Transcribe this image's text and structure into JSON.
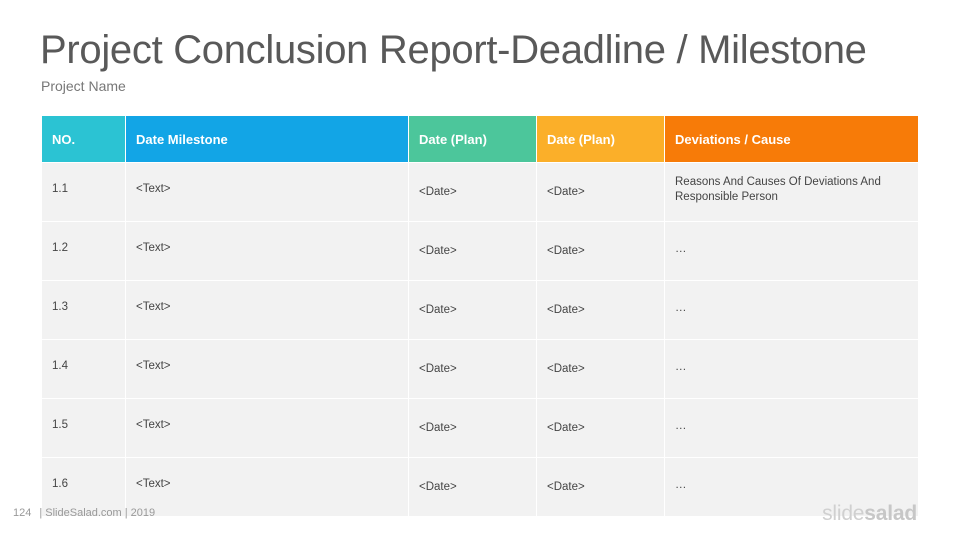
{
  "title": "Project Conclusion Report-Deadline / Milestone",
  "subtitle": "Project Name",
  "table": {
    "headers": [
      {
        "label": "NO.",
        "color": "#2bc3d3"
      },
      {
        "label": "Date Milestone",
        "color": "#12a5e6"
      },
      {
        "label": "Date (Plan)",
        "color": "#4cc69b"
      },
      {
        "label": "Date (Plan)",
        "color": "#fbaf29"
      },
      {
        "label": "Deviations / Cause",
        "color": "#f77b08"
      }
    ],
    "rows": [
      [
        "1.1",
        "<Text>",
        "<Date>",
        "<Date>",
        "Reasons And Causes Of Deviations And Responsible Person"
      ],
      [
        "1.2",
        "<Text>",
        "<Date>",
        "<Date>",
        "…"
      ],
      [
        "1.3",
        "<Text>",
        "<Date>",
        "<Date>",
        "…"
      ],
      [
        "1.4",
        "<Text>",
        "<Date>",
        "<Date>",
        "…"
      ],
      [
        "1.5",
        "<Text>",
        "<Date>",
        "<Date>",
        "…"
      ],
      [
        "1.6",
        "<Text>",
        "<Date>",
        "<Date>",
        "…"
      ]
    ]
  },
  "footer": {
    "page_number": "124",
    "source": "| SlideSalad.com | 2019"
  },
  "logo": {
    "part1": "slide",
    "part2": "salad"
  }
}
